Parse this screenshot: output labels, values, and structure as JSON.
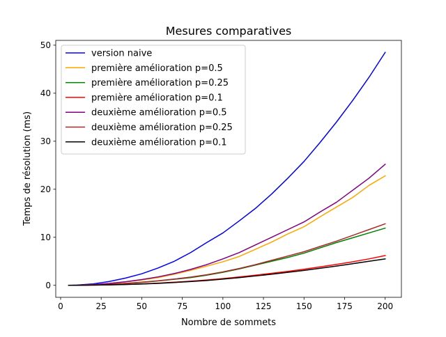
{
  "chart_data": {
    "type": "line",
    "title": "Mesures comparatives",
    "xlabel": "Nombre de sommets",
    "ylabel": "Temps de résolution (ms)",
    "xlim": [
      -3,
      210
    ],
    "ylim": [
      -2.5,
      51
    ],
    "xticks": [
      0,
      25,
      50,
      75,
      100,
      125,
      150,
      175,
      200
    ],
    "yticks": [
      0,
      10,
      20,
      30,
      40,
      50
    ],
    "grid": false,
    "legend_position": "top-left",
    "x": [
      5,
      10,
      20,
      30,
      40,
      50,
      60,
      70,
      80,
      90,
      100,
      110,
      120,
      130,
      140,
      150,
      160,
      170,
      180,
      190,
      200
    ],
    "series": [
      {
        "name": "version naive",
        "color": "#0000ff",
        "values": [
          0.0,
          0.05,
          0.3,
          0.8,
          1.5,
          2.4,
          3.6,
          5.0,
          6.8,
          8.9,
          10.9,
          13.4,
          16.0,
          19.0,
          22.3,
          25.8,
          29.8,
          34.0,
          38.5,
          43.3,
          48.5
        ]
      },
      {
        "name": "première amélioration p=0.5",
        "color": "#ffa500",
        "values": [
          0.0,
          0.02,
          0.15,
          0.35,
          0.7,
          1.1,
          1.6,
          2.3,
          3.1,
          4.0,
          4.9,
          6.0,
          7.5,
          9.0,
          10.7,
          12.2,
          14.3,
          16.3,
          18.3,
          20.8,
          22.8
        ]
      },
      {
        "name": "première amélioration p=0.25",
        "color": "#008000",
        "values": [
          0.0,
          0.01,
          0.08,
          0.2,
          0.4,
          0.6,
          0.9,
          1.25,
          1.6,
          2.1,
          2.7,
          3.4,
          4.2,
          5.0,
          5.8,
          6.7,
          7.8,
          8.9,
          9.9,
          10.9,
          11.9
        ]
      },
      {
        "name": "première amélioration p=0.1",
        "color": "#ff0000",
        "values": [
          0.0,
          0.01,
          0.05,
          0.1,
          0.2,
          0.3,
          0.45,
          0.65,
          0.85,
          1.1,
          1.4,
          1.75,
          2.1,
          2.5,
          2.9,
          3.35,
          3.85,
          4.35,
          4.9,
          5.5,
          6.2
        ]
      },
      {
        "name": "deuxième amélioration p=0.5",
        "color": "#800080",
        "values": [
          0.0,
          0.02,
          0.15,
          0.4,
          0.75,
          1.2,
          1.75,
          2.45,
          3.3,
          4.3,
          5.5,
          6.8,
          8.4,
          10.0,
          11.6,
          13.2,
          15.3,
          17.3,
          19.8,
          22.3,
          25.2
        ]
      },
      {
        "name": "deuxième amélioration p=0.25",
        "color": "#a52a2a",
        "values": [
          0.0,
          0.01,
          0.08,
          0.2,
          0.4,
          0.65,
          0.95,
          1.3,
          1.7,
          2.2,
          2.8,
          3.5,
          4.3,
          5.2,
          6.1,
          7.0,
          8.1,
          9.2,
          10.4,
          11.6,
          12.8
        ]
      },
      {
        "name": "deuxième amélioration p=0.1",
        "color": "#000000",
        "values": [
          0.0,
          0.01,
          0.04,
          0.09,
          0.17,
          0.27,
          0.4,
          0.58,
          0.78,
          1.0,
          1.28,
          1.6,
          1.95,
          2.3,
          2.7,
          3.1,
          3.55,
          4.0,
          4.5,
          5.0,
          5.5
        ]
      }
    ]
  }
}
